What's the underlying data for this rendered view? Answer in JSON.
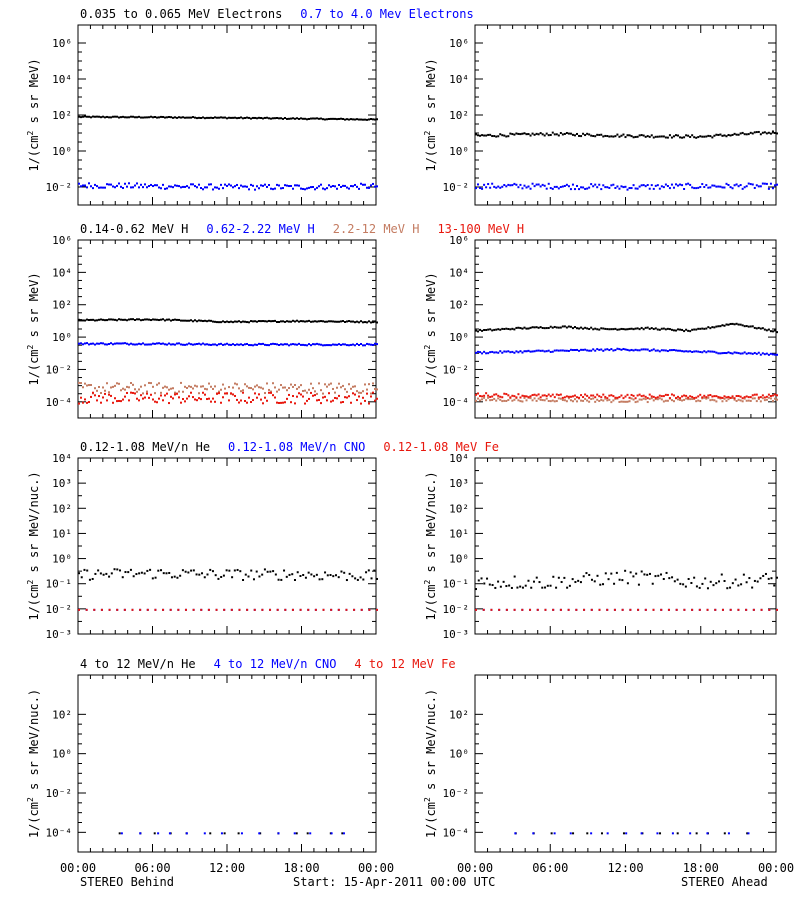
{
  "colors": {
    "black": "#000000",
    "blue": "#0000ff",
    "tan": "#c47c62",
    "red": "#e8170d",
    "frame": "#000000"
  },
  "footer": {
    "left": "STEREO Behind",
    "center": "Start: 15-Apr-2011 00:00 UTC",
    "right": "STEREO Ahead"
  },
  "x_tick_labels": [
    "00:00",
    "06:00",
    "12:00",
    "18:00",
    "00:00"
  ],
  "chart_data": [
    {
      "type": "scatter",
      "row": 0,
      "legend": [
        {
          "text": "0.035 to 0.065 MeV Electrons",
          "color": "#000000"
        },
        {
          "text": "0.7 to 4.0 Mev Electrons",
          "color": "#0000ff"
        }
      ],
      "ylabel_base": "1/(cm",
      "ylabel_sup": "2",
      "ylabel_rest": " s sr MeV)",
      "y_exponents": [
        -2,
        0,
        2,
        4,
        6
      ],
      "ylim_log10": [
        -3,
        7
      ],
      "xlim_hours": [
        0,
        24
      ],
      "panels": [
        {
          "side": "STEREO Behind",
          "series": [
            {
              "name": "0.035 to 0.065 MeV Electrons",
              "color": "#000000",
              "log10_level": [
                1.95,
                1.93,
                1.9,
                1.85,
                1.8
              ],
              "scatter": 0.03
            },
            {
              "name": "0.7 to 4.0 Mev Electrons",
              "color": "#0000ff",
              "log10_level": [
                -1.85,
                -1.9,
                -1.95,
                -1.95,
                -1.9
              ],
              "scatter": 0.15
            }
          ]
        },
        {
          "side": "STEREO Ahead",
          "series": [
            {
              "name": "0.035 to 0.065 MeV Electrons",
              "color": "#000000",
              "log10_level": [
                0.9,
                1.0,
                0.9,
                0.85,
                1.1
              ],
              "scatter": 0.08
            },
            {
              "name": "0.7 to 4.0 Mev Electrons",
              "color": "#0000ff",
              "log10_level": [
                -1.9,
                -1.9,
                -1.95,
                -1.9,
                -1.9
              ],
              "scatter": 0.15
            }
          ]
        }
      ]
    },
    {
      "type": "scatter",
      "row": 1,
      "legend": [
        {
          "text": "0.14-0.62 MeV H",
          "color": "#000000"
        },
        {
          "text": "0.62-2.22 MeV H",
          "color": "#0000ff"
        },
        {
          "text": "2.2-12 MeV H",
          "color": "#c47c62"
        },
        {
          "text": "13-100 MeV H",
          "color": "#e8170d"
        }
      ],
      "ylabel_base": "1/(cm",
      "ylabel_sup": "2",
      "ylabel_rest": " s sr MeV)",
      "y_exponents": [
        -4,
        -2,
        0,
        2,
        4,
        6
      ],
      "ylim_log10": [
        -5,
        6
      ],
      "xlim_hours": [
        0,
        24
      ],
      "panels": [
        {
          "side": "STEREO Behind",
          "series": [
            {
              "name": "0.14-0.62 MeV H",
              "color": "#000000",
              "log10_level": [
                1.1,
                1.15,
                1.0,
                1.05,
                1.0
              ],
              "scatter": 0.04
            },
            {
              "name": "0.62-2.22 MeV H",
              "color": "#0000ff",
              "log10_level": [
                -0.35,
                -0.35,
                -0.4,
                -0.4,
                -0.4
              ],
              "scatter": 0.05
            },
            {
              "name": "2.2-12 MeV H",
              "color": "#c47c62",
              "log10_level": [
                -3.1,
                -3.1,
                -3.1,
                -3.1,
                -3.1
              ],
              "scatter": 0.35
            },
            {
              "name": "13-100 MeV H",
              "color": "#e8170d",
              "log10_level": [
                -3.7,
                -3.7,
                -3.7,
                -3.7,
                -3.7
              ],
              "scatter": 0.35
            }
          ]
        },
        {
          "side": "STEREO Ahead",
          "series": [
            {
              "name": "0.14-0.62 MeV H",
              "color": "#000000",
              "log10_level": [
                0.45,
                0.6,
                0.7,
                0.55,
                0.6,
                0.45,
                0.9,
                0.4
              ],
              "scatter": 0.05
            },
            {
              "name": "0.62-2.22 MeV H",
              "color": "#0000ff",
              "log10_level": [
                -0.9,
                -0.8,
                -0.7,
                -0.85,
                -1.0
              ],
              "scatter": 0.06
            },
            {
              "name": "2.2-12 MeV H",
              "color": "#c47c62",
              "log10_level": [
                -3.8,
                -3.8,
                -3.85,
                -3.8,
                -3.8
              ],
              "scatter": 0.12
            },
            {
              "name": "13-100 MeV H",
              "color": "#e8170d",
              "log10_level": [
                -3.5,
                -3.6,
                -3.6,
                -3.6,
                -3.6
              ],
              "scatter": 0.12
            }
          ]
        }
      ]
    },
    {
      "type": "scatter",
      "row": 2,
      "legend": [
        {
          "text": "0.12-1.08 MeV/n He",
          "color": "#000000"
        },
        {
          "text": "0.12-1.08 MeV/n CNO",
          "color": "#0000ff"
        },
        {
          "text": "0.12-1.08 MeV Fe",
          "color": "#e8170d"
        }
      ],
      "ylabel_base": "1/(cm",
      "ylabel_sup": "2",
      "ylabel_rest": " s sr MeV/nuc.)",
      "y_tick_labels": [
        "10⁻³",
        "10⁻²",
        "10⁻¹",
        "10⁰",
        "10¹",
        "10²",
        "10³",
        "10⁴"
      ],
      "y_exponents": [
        -3,
        -2,
        -1,
        0,
        1,
        2,
        3,
        4
      ],
      "ylim_log10": [
        -3,
        4
      ],
      "xlim_hours": [
        0,
        24
      ],
      "panels": [
        {
          "side": "STEREO Behind",
          "series": [
            {
              "name": "0.12-1.08 MeV/n He",
              "color": "#000000",
              "log10_level": [
                -0.6,
                -0.55,
                -0.6,
                -0.6,
                -0.65
              ],
              "scatter": 0.22
            },
            {
              "name": "0.12-1.08 MeV/n CNO",
              "color": "#0000ff",
              "log10_level": [
                -2.0,
                -2.0,
                -2.0,
                -2.0,
                -2.0
              ],
              "scatter": 0.0
            },
            {
              "name": "0.12-1.08 MeV Fe",
              "color": "#e8170d",
              "log10_level": [
                -2.0,
                -2.0,
                -2.0,
                -2.0,
                -2.0
              ],
              "scatter": 0.0
            }
          ]
        },
        {
          "side": "STEREO Ahead",
          "series": [
            {
              "name": "0.12-1.08 MeV/n He",
              "color": "#000000",
              "log10_level": [
                -0.9,
                -0.9,
                -0.7,
                -0.9,
                -0.8
              ],
              "scatter": 0.28
            },
            {
              "name": "0.12-1.08 MeV/n CNO",
              "color": "#0000ff",
              "log10_level": [
                -2.0,
                -2.0,
                -2.0,
                -2.0,
                -2.0
              ],
              "scatter": 0.0
            },
            {
              "name": "0.12-1.08 MeV Fe",
              "color": "#e8170d",
              "log10_level": [
                -2.0,
                -2.0,
                -2.0,
                -2.0,
                -2.0
              ],
              "scatter": 0.0
            }
          ]
        }
      ]
    },
    {
      "type": "scatter",
      "row": 3,
      "legend": [
        {
          "text": "4 to 12 MeV/n He",
          "color": "#000000"
        },
        {
          "text": "4 to 12 MeV/n CNO",
          "color": "#0000ff"
        },
        {
          "text": "4 to 12 MeV Fe",
          "color": "#e8170d"
        }
      ],
      "ylabel_base": "1/(cm",
      "ylabel_sup": "2",
      "ylabel_rest": " s sr MeV/nuc.)",
      "y_exponents": [
        -4,
        -2,
        0,
        2
      ],
      "ylim_log10": [
        -5,
        4
      ],
      "xlim_hours": [
        0,
        24
      ],
      "panels": [
        {
          "side": "STEREO Behind",
          "series": [
            {
              "name": "4 to 12 MeV/n He",
              "color": "#000000",
              "log10_level": [
                -4.0,
                -4.0,
                -4.0,
                -4.0,
                -4.0
              ],
              "scatter": 0.0
            },
            {
              "name": "4 to 12 MeV/n CNO",
              "color": "#0000ff",
              "log10_level": [
                -4.0,
                -4.0,
                -4.0,
                -4.0,
                -4.0
              ],
              "scatter": 0.0
            }
          ]
        },
        {
          "side": "STEREO Ahead",
          "series": [
            {
              "name": "4 to 12 MeV/n He",
              "color": "#000000",
              "log10_level": [
                -4.0,
                -4.0,
                -4.0,
                -4.0,
                -4.0
              ],
              "scatter": 0.0
            },
            {
              "name": "4 to 12 MeV/n CNO",
              "color": "#0000ff",
              "log10_level": [
                -4.0,
                -4.0,
                -4.0,
                -4.0,
                -4.0
              ],
              "scatter": 0.0
            }
          ]
        }
      ]
    }
  ]
}
